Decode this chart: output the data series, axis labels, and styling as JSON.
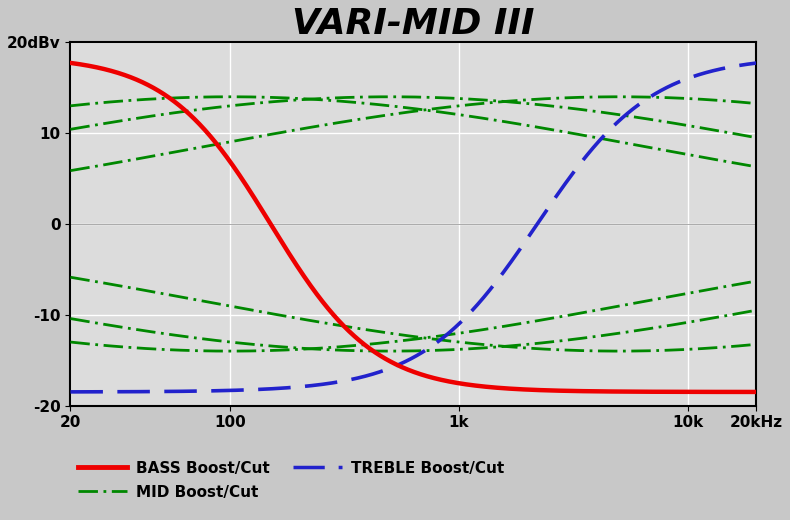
{
  "title": "VARI-MID III",
  "title_fontsize": 26,
  "background_color": "#c8c8c8",
  "plot_bg_color": "#dcdcdc",
  "ylim": [
    -20,
    20
  ],
  "freq_min": 20,
  "freq_max": 20000,
  "yticks": [
    -20,
    -10,
    0,
    10,
    20
  ],
  "ytick_labels": [
    "-20",
    "-10",
    "0",
    "10",
    "20dBv"
  ],
  "xtick_positions": [
    20,
    100,
    1000,
    10000,
    20000
  ],
  "xtick_labels": [
    "20",
    "100",
    "1k",
    "10k",
    "20kHz"
  ],
  "bass_color": "#ee0000",
  "treble_color": "#2222cc",
  "mid_color": "#008800",
  "bass_lw": 3.2,
  "treble_lw": 2.6,
  "mid_lw": 2.0,
  "legend_bass": "BASS Boost/Cut",
  "legend_treble": "TREBLE Boost/Cut",
  "legend_mid": "MID Boost/Cut",
  "bass_fc": 150,
  "bass_slope": 2.2,
  "bass_max": 18.5,
  "treble_fc": 2200,
  "treble_slope": 2.0,
  "treble_max": 18.5,
  "mid_centers": [
    100,
    500,
    5000
  ],
  "mid_gain": 14.0,
  "mid_Q": 0.55,
  "grid_color_major": "#ffffff",
  "grid_color_minor": "#cccccc"
}
